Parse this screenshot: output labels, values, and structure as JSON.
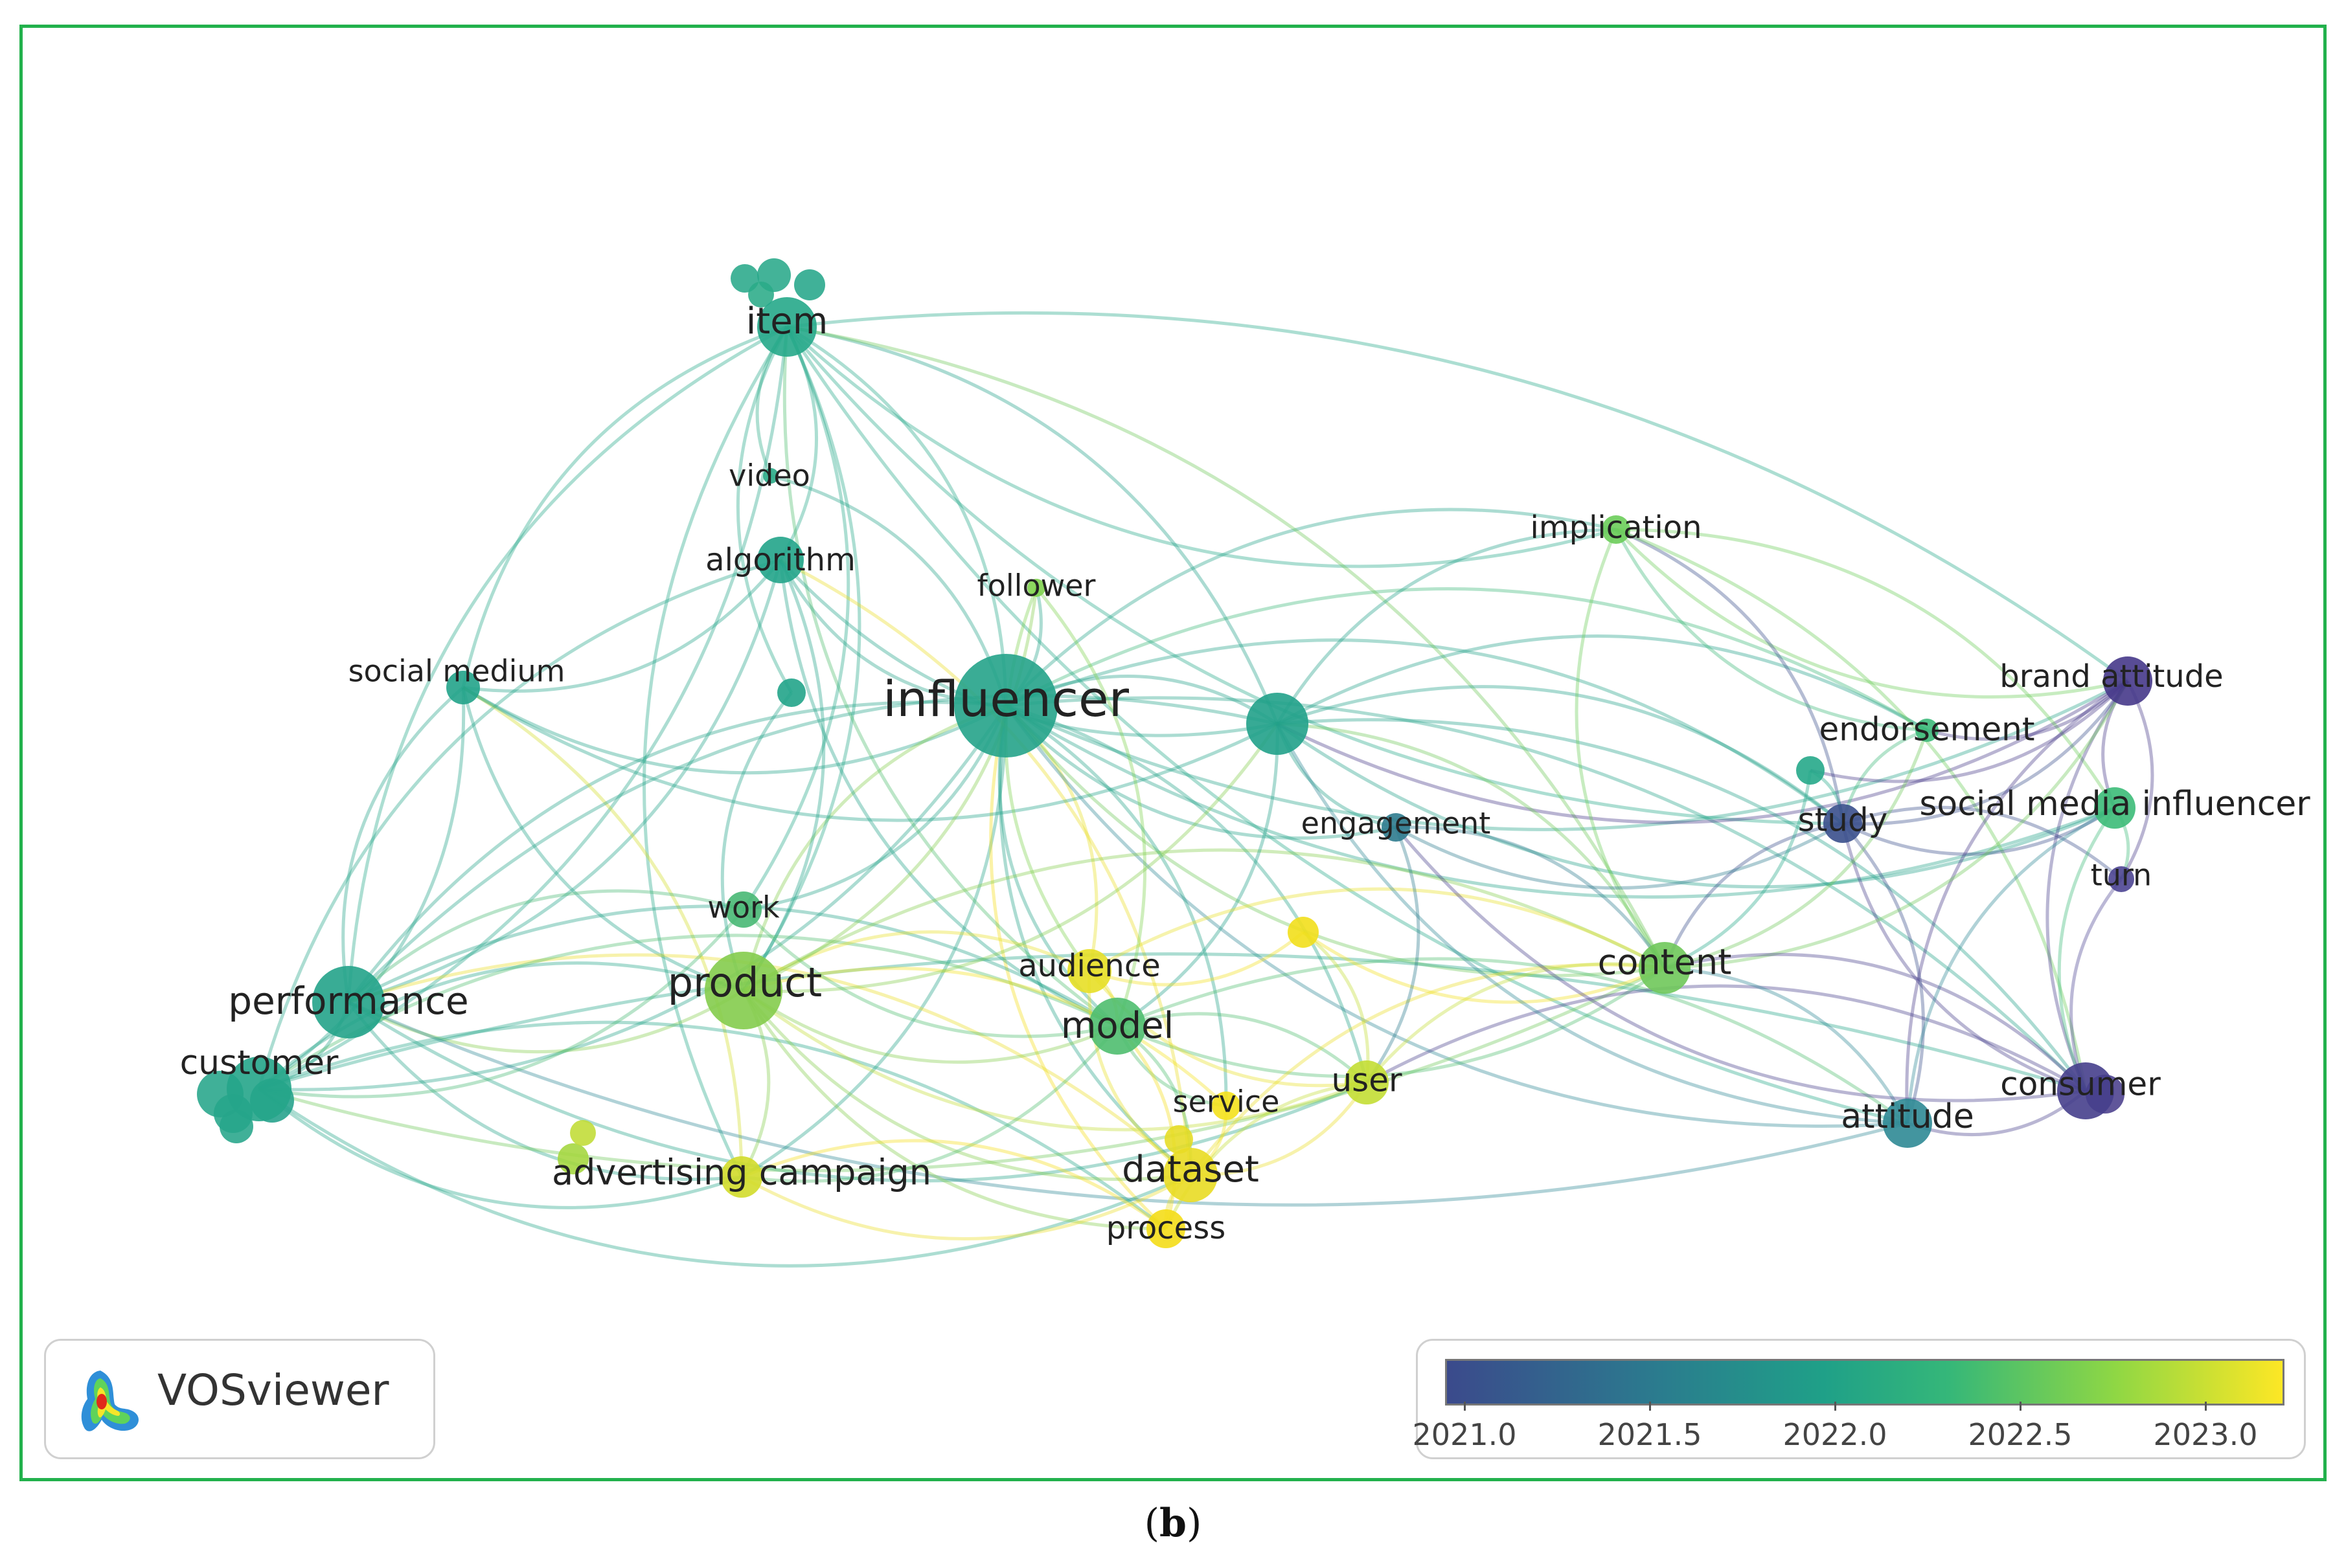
{
  "diagram": {
    "colors": {
      "y2021_0": "#3b4a8c",
      "y2021_5": "#2b7b8e",
      "y2022_0": "#1fa088",
      "y2022_5": "#8fd744",
      "y2023_0": "#fde725"
    },
    "nodes": [
      {
        "id": "item",
        "label": "item",
        "color": "#26a88a",
        "weight": 3
      },
      {
        "id": "video",
        "label": "video",
        "color": "#2aab87",
        "weight": 1
      },
      {
        "id": "algorithm",
        "label": "algorithm",
        "color": "#22a48a",
        "weight": 2
      },
      {
        "id": "follower",
        "label": "follower",
        "color": "#7fd34e",
        "weight": 1
      },
      {
        "id": "implication",
        "label": "implication",
        "color": "#6ccd5a",
        "weight": 1
      },
      {
        "id": "social_medium",
        "label": "social medium",
        "color": "#22a38a",
        "weight": 1
      },
      {
        "id": "influencer",
        "label": "influencer",
        "color": "#25a38a",
        "weight": 6
      },
      {
        "id": "hub_unlabeled",
        "label": "",
        "color": "#21a189",
        "weight": 3
      },
      {
        "id": "brand_attitude",
        "label": "brand attitude",
        "color": "#46398a",
        "weight": 2
      },
      {
        "id": "endorsement",
        "label": "endorsement",
        "color": "#3db97a",
        "weight": 1
      },
      {
        "id": "engagement",
        "label": "engagement",
        "color": "#2e7b8e",
        "weight": 1
      },
      {
        "id": "study",
        "label": "study",
        "color": "#3a4f8c",
        "weight": 2
      },
      {
        "id": "social_media_influencer",
        "label": "social media influencer",
        "color": "#3cbb78",
        "weight": 2
      },
      {
        "id": "turn",
        "label": "turn",
        "color": "#4c4592",
        "weight": 1
      },
      {
        "id": "work",
        "label": "work",
        "color": "#48b874",
        "weight": 1
      },
      {
        "id": "product",
        "label": "product",
        "color": "#84cc4c",
        "weight": 4
      },
      {
        "id": "performance",
        "label": "performance",
        "color": "#24a389",
        "weight": 4
      },
      {
        "id": "customer",
        "label": "customer",
        "color": "#25a58a",
        "weight": 3
      },
      {
        "id": "audience",
        "label": "audience",
        "color": "#e7df26",
        "weight": 2
      },
      {
        "id": "model",
        "label": "model",
        "color": "#4fbe6f",
        "weight": 3
      },
      {
        "id": "content",
        "label": "content",
        "color": "#6fc85a",
        "weight": 2
      },
      {
        "id": "user",
        "label": "user",
        "color": "#c3de34",
        "weight": 2
      },
      {
        "id": "service",
        "label": "service",
        "color": "#f4e11c",
        "weight": 1
      },
      {
        "id": "consumer",
        "label": "consumer",
        "color": "#463f8c",
        "weight": 2
      },
      {
        "id": "attitude",
        "label": "attitude",
        "color": "#2f8a95",
        "weight": 2
      },
      {
        "id": "advertising_campaign",
        "label": "advertising campaign",
        "color": "#d2dc2a",
        "weight": 2
      },
      {
        "id": "dataset",
        "label": "dataset",
        "color": "#e9dc24",
        "weight": 3
      },
      {
        "id": "process",
        "label": "process",
        "color": "#f4dd18",
        "weight": 2
      },
      {
        "id": "yellow_unlabeled",
        "label": "",
        "color": "#f2df1c",
        "weight": 1
      },
      {
        "id": "small_unlabeled",
        "label": "",
        "color": "#22a48a",
        "weight": 1
      },
      {
        "id": "small_unlabeled2",
        "label": "",
        "color": "#26a98a",
        "weight": 1
      }
    ]
  },
  "logo": {
    "text": "VOSviewer",
    "name": "vosviewer-logo-icon"
  },
  "legend": {
    "ticks": [
      "2021.0",
      "2021.5",
      "2022.0",
      "2022.5",
      "2023.0"
    ]
  },
  "caption": {
    "open": "(",
    "letter": "b",
    "close": ")"
  }
}
